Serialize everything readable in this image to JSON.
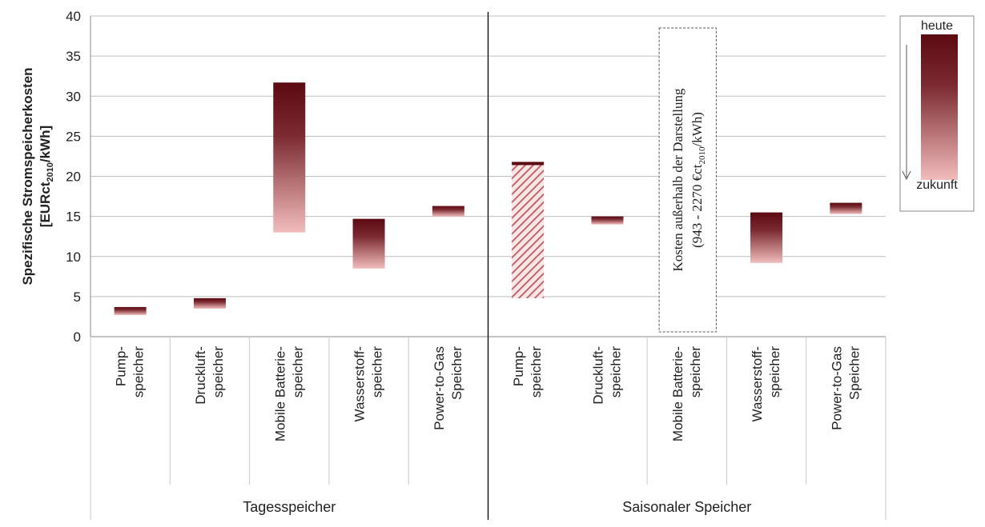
{
  "chart_data": {
    "type": "bar",
    "ylabel_line1": "Spezifische Stromspeicherkosten",
    "ylabel_line2_prefix": "[EURct",
    "ylabel_line2_sub": "2010",
    "ylabel_line2_suffix": "/kWh]",
    "ylim": [
      0,
      40
    ],
    "yticks": [
      0,
      5,
      10,
      15,
      20,
      25,
      30,
      35,
      40
    ],
    "grid": true,
    "groups": [
      {
        "name": "Tagesspeicher",
        "categories": [
          {
            "label": [
              "Pump-",
              "speicher"
            ],
            "heute": 3.7,
            "zukunft": 2.7
          },
          {
            "label": [
              "Druckluft-",
              "speicher"
            ],
            "heute": 4.8,
            "zukunft": 3.5
          },
          {
            "label": [
              "Mobile Batterie-",
              "speicher"
            ],
            "heute": 31.7,
            "zukunft": 13.0
          },
          {
            "label": [
              "Wasserstoff-",
              "speicher"
            ],
            "heute": 14.7,
            "zukunft": 8.5
          },
          {
            "label": [
              "Power-to-Gas",
              "Speicher"
            ],
            "heute": 16.3,
            "zukunft": 15.0
          }
        ]
      },
      {
        "name": "Saisonaler Speicher",
        "categories": [
          {
            "label": [
              "Pump-",
              "speicher"
            ],
            "heute": 21.8,
            "zukunft": 4.8,
            "hatched": true
          },
          {
            "label": [
              "Druckluft-",
              "speicher"
            ],
            "heute": 15.0,
            "zukunft": 14.0
          },
          {
            "label": [
              "Mobile Batterie-",
              "speicher"
            ],
            "heute": null,
            "zukunft": null,
            "note_line1": "Kosten außerhalb der Darstellung",
            "note_line2_prefix": "(943 - 2270 €ct",
            "note_line2_sub": "2010",
            "note_line2_suffix": "/kWh)"
          },
          {
            "label": [
              "Wasserstoff-",
              "speicher"
            ],
            "heute": 15.5,
            "zukunft": 9.2
          },
          {
            "label": [
              "Power-to-Gas",
              "Speicher"
            ],
            "heute": 16.7,
            "zukunft": 15.3
          }
        ]
      }
    ],
    "legend": {
      "top": "heute",
      "bottom": "zukunft",
      "position": "right"
    },
    "colors": {
      "dark": "#5a0a10",
      "mid": "#7a2a30",
      "light": "#f2bcbc"
    }
  }
}
